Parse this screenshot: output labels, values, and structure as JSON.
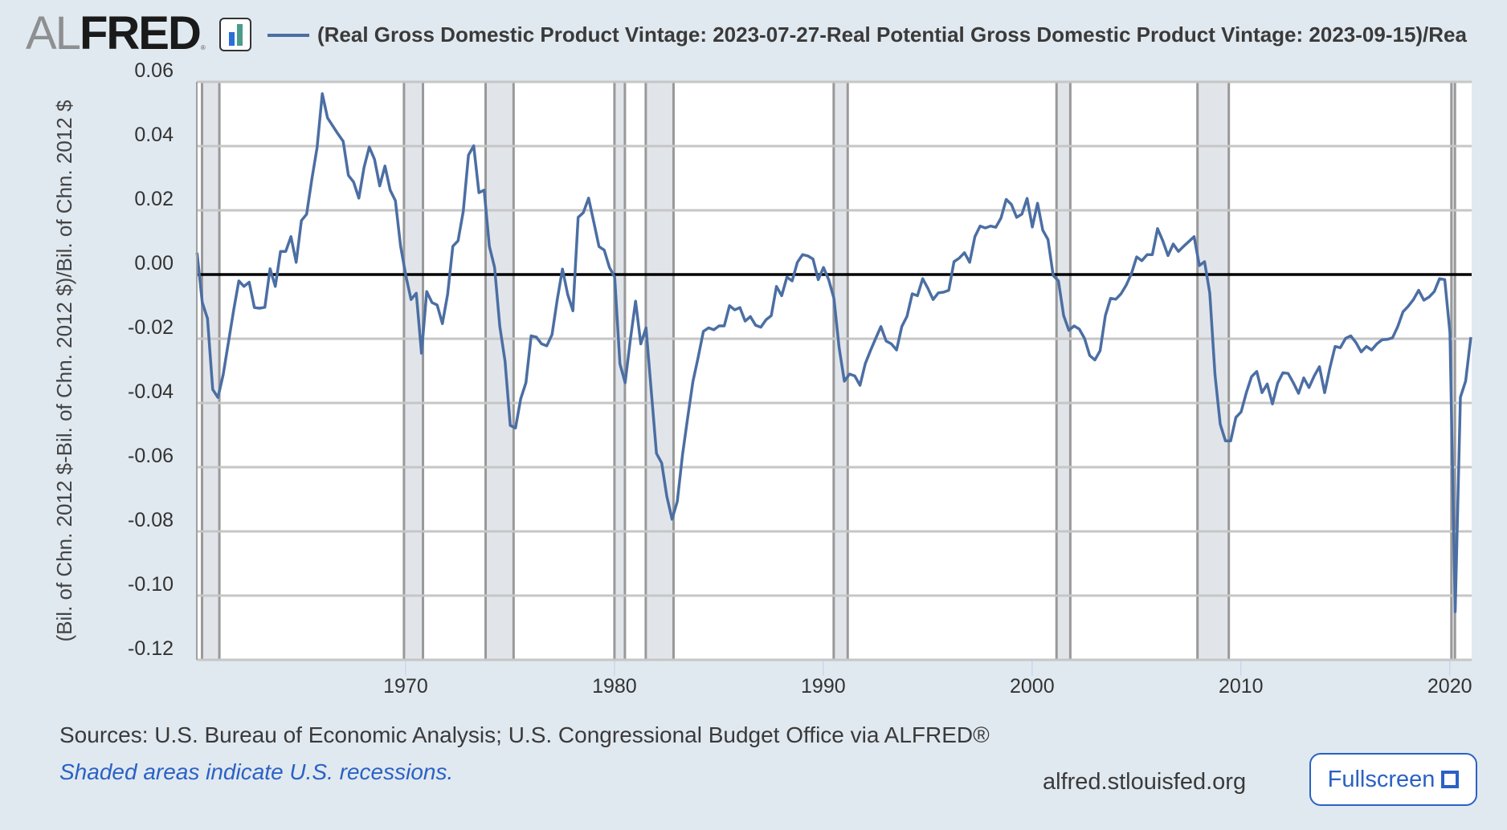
{
  "logo": {
    "part1": "AL",
    "part2": "FRED",
    "registered": "®",
    "icon": "bar-chart-icon"
  },
  "legend": {
    "color": "#4b6ea3",
    "title": "(Real Gross Domestic Product Vintage: 2023-07-27-Real Potential Gross Domestic Product Vintage: 2023-09-15)/Rea"
  },
  "footer": {
    "sources": "Sources: U.S. Bureau of Economic Analysis; U.S. Congressional Budget Office via ALFRED®",
    "note": "Shaded areas indicate U.S. recessions.",
    "site": "alfred.stlouisfed.org",
    "fullscreen_label": "Fullscreen",
    "fullscreen_icon": "expand-icon"
  },
  "chart_data": {
    "type": "line",
    "title": "(Real Gross Domestic Product Vintage: 2023-07-27-Real Potential Gross Domestic Product Vintage: 2023-09-15)/Rea",
    "xlabel": "",
    "ylabel": "(Bil. of Chn. 2012 $-Bil. of Chn. 2012 $)/Bil. of Chn. 2012 $",
    "x_start": "1960-Q1",
    "frequency": "quarterly",
    "xlim": [
      1960.0,
      2021.05
    ],
    "ylim": [
      -0.12,
      0.06
    ],
    "x_ticks": [
      1970,
      1980,
      1990,
      2000,
      2010,
      2020
    ],
    "y_ticks": [
      "0.06",
      "0.04",
      "0.02",
      "0.00",
      "-0.02",
      "-0.04",
      "-0.06",
      "-0.08",
      "-0.10",
      "-0.12"
    ],
    "y_tick_values": [
      0.06,
      0.04,
      0.02,
      0.0,
      -0.02,
      -0.04,
      -0.06,
      -0.08,
      -0.1,
      -0.12
    ],
    "grid": true,
    "reference_line": 0.0,
    "legend_position": "top",
    "series": [
      {
        "name": "(Real Gross Domestic Product Vintage: 2023-07-27-Real Potential Gross Domestic Product Vintage: 2023-09-15)/Real Potential Gross Domestic Product",
        "color": "#4b6ea3",
        "values": [
          0.0068,
          -0.0087,
          -0.0137,
          -0.0358,
          -0.0383,
          -0.0312,
          -0.0212,
          -0.0112,
          -0.002,
          -0.0037,
          -0.0024,
          -0.0103,
          -0.0105,
          -0.0102,
          0.0018,
          -0.0037,
          0.0072,
          0.0072,
          0.0118,
          0.0038,
          0.0168,
          0.0188,
          0.0297,
          0.0395,
          0.0563,
          0.0488,
          0.0463,
          0.0438,
          0.0415,
          0.0309,
          0.0288,
          0.0238,
          0.0334,
          0.0397,
          0.0359,
          0.0276,
          0.0338,
          0.0263,
          0.023,
          0.0088,
          -0.0003,
          -0.0078,
          -0.0058,
          -0.0245,
          -0.0053,
          -0.0087,
          -0.0095,
          -0.0153,
          -0.0062,
          0.0088,
          0.0105,
          0.0197,
          0.0372,
          0.0401,
          0.0255,
          0.0263,
          0.0088,
          0.0022,
          -0.0162,
          -0.027,
          -0.047,
          -0.0478,
          -0.0387,
          -0.0337,
          -0.0191,
          -0.0195,
          -0.0216,
          -0.0222,
          -0.0187,
          -0.0078,
          0.0017,
          -0.0062,
          -0.0113,
          0.0178,
          0.0193,
          0.0238,
          0.0163,
          0.0087,
          0.0076,
          0.0022,
          -0.0008,
          -0.0278,
          -0.0337,
          -0.0203,
          -0.0083,
          -0.0216,
          -0.0166,
          -0.0362,
          -0.0557,
          -0.0587,
          -0.0691,
          -0.0762,
          -0.0707,
          -0.0562,
          -0.0445,
          -0.0333,
          -0.0258,
          -0.0177,
          -0.0166,
          -0.0172,
          -0.016,
          -0.016,
          -0.0097,
          -0.011,
          -0.0103,
          -0.0145,
          -0.0131,
          -0.0158,
          -0.0164,
          -0.0141,
          -0.0128,
          -0.0037,
          -0.0066,
          -0.0008,
          -0.002,
          0.0038,
          0.0062,
          0.0058,
          0.0048,
          -0.0016,
          0.0022,
          -0.0016,
          -0.0074,
          -0.0228,
          -0.0332,
          -0.031,
          -0.0316,
          -0.0345,
          -0.0278,
          -0.0237,
          -0.0199,
          -0.0162,
          -0.0207,
          -0.0216,
          -0.0235,
          -0.0162,
          -0.013,
          -0.006,
          -0.0066,
          -0.0013,
          -0.0043,
          -0.0078,
          -0.0057,
          -0.0055,
          -0.0049,
          0.004,
          0.0051,
          0.0068,
          0.0038,
          0.0118,
          0.0151,
          0.0145,
          0.0151,
          0.0147,
          0.0176,
          0.0234,
          0.0218,
          0.0178,
          0.0188,
          0.0237,
          0.0148,
          0.0222,
          0.0138,
          0.0109,
          -0.0003,
          -0.002,
          -0.0128,
          -0.0174,
          -0.016,
          -0.017,
          -0.0199,
          -0.0252,
          -0.0266,
          -0.0237,
          -0.0128,
          -0.0074,
          -0.0077,
          -0.006,
          -0.0033,
          0.0003,
          0.0055,
          0.0043,
          0.0062,
          0.0062,
          0.0143,
          0.0105,
          0.0059,
          0.0095,
          0.0072,
          0.0088,
          0.0103,
          0.0118,
          0.0028,
          0.004,
          -0.0058,
          -0.0312,
          -0.0466,
          -0.0518,
          -0.0518,
          -0.0445,
          -0.0428,
          -0.0368,
          -0.0318,
          -0.0302,
          -0.0368,
          -0.0341,
          -0.0403,
          -0.0338,
          -0.0306,
          -0.0308,
          -0.0337,
          -0.037,
          -0.0322,
          -0.0352,
          -0.0316,
          -0.0287,
          -0.0368,
          -0.0291,
          -0.0224,
          -0.0228,
          -0.0199,
          -0.0191,
          -0.0212,
          -0.0241,
          -0.0224,
          -0.0235,
          -0.0216,
          -0.0203,
          -0.0202,
          -0.0197,
          -0.0162,
          -0.0116,
          -0.0099,
          -0.0078,
          -0.0049,
          -0.008,
          -0.007,
          -0.0053,
          -0.0013,
          -0.0016,
          -0.0182,
          -0.105,
          -0.0382,
          -0.0332,
          -0.0195
        ]
      }
    ],
    "recessions": [
      [
        1960.25,
        1961.08
      ],
      [
        1969.92,
        1970.83
      ],
      [
        1973.83,
        1975.17
      ],
      [
        1980.0,
        1980.5
      ],
      [
        1981.5,
        1982.83
      ],
      [
        1990.5,
        1991.17
      ],
      [
        2001.17,
        2001.83
      ],
      [
        2007.92,
        2009.42
      ],
      [
        2020.08,
        2020.25
      ]
    ]
  }
}
